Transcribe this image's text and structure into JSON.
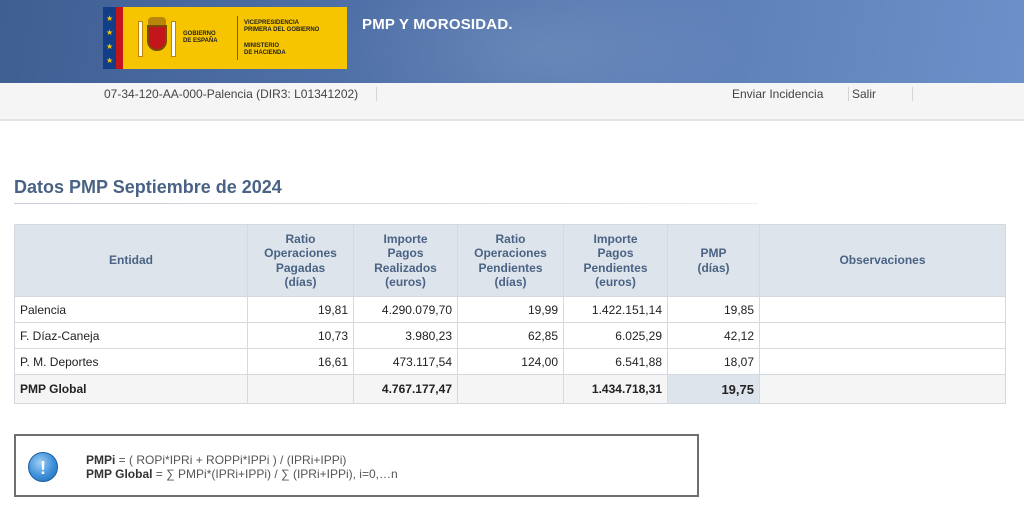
{
  "header": {
    "logo": {
      "gov_line1": "GOBIERNO",
      "gov_line2": "DE ESPAÑA",
      "vp_line1": "VICEPRESIDENCIA",
      "vp_line2": "PRIMERA DEL GOBIERNO",
      "min_line1": "MINISTERIO",
      "min_line2": "DE HACIENDA"
    },
    "app_title": "PMP Y MOROSIDAD."
  },
  "infobar": {
    "entity": "07-34-120-AA-000-Palencia (DIR3: L01341202)",
    "enviar": "Enviar Incidencia",
    "salir": "Salir"
  },
  "section_title": "Datos PMP Septiembre de 2024",
  "table": {
    "headers": {
      "entidad": "Entidad",
      "ratio_pagadas": [
        "Ratio",
        "Operaciones",
        "Pagadas",
        "(días)"
      ],
      "importe_realizados": [
        "Importe",
        "Pagos",
        "Realizados",
        "(euros)"
      ],
      "ratio_pendientes": [
        "Ratio",
        "Operaciones",
        "Pendientes",
        "(días)"
      ],
      "importe_pendientes": [
        "Importe",
        "Pagos",
        "Pendientes",
        "(euros)"
      ],
      "pmp": [
        "PMP",
        "(días)"
      ],
      "observaciones": "Observaciones"
    },
    "rows": [
      {
        "entidad": "Palencia",
        "ratio_pagadas": "19,81",
        "importe_realizados": "4.290.079,70",
        "ratio_pendientes": "19,99",
        "importe_pendientes": "1.422.151,14",
        "pmp": "19,85",
        "observaciones": ""
      },
      {
        "entidad": "F. Díaz-Caneja",
        "ratio_pagadas": "10,73",
        "importe_realizados": "3.980,23",
        "ratio_pendientes": "62,85",
        "importe_pendientes": "6.025,29",
        "pmp": "42,12",
        "observaciones": ""
      },
      {
        "entidad": "P. M. Deportes",
        "ratio_pagadas": "16,61",
        "importe_realizados": "473.117,54",
        "ratio_pendientes": "124,00",
        "importe_pendientes": "6.541,88",
        "pmp": "18,07",
        "observaciones": ""
      }
    ],
    "total": {
      "entidad": "PMP Global",
      "importe_realizados": "4.767.177,47",
      "importe_pendientes": "1.434.718,31",
      "pmp": "19,75"
    }
  },
  "formula": {
    "pmpi_label": "PMPi",
    "pmpi_expr": " = ( ROPi*IPRi + ROPPi*IPPi ) / (IPRi+IPPi)",
    "global_label": "PMP Global",
    "global_expr": " = ∑ PMPi*(IPRi+IPPi) / ∑ (IPRi+IPPi), i=0,…n"
  },
  "colors": {
    "banner": "#4d6ea5",
    "logo_yellow": "#f6c500",
    "header_cell": "#dde4ec",
    "title": "#4a6384"
  }
}
